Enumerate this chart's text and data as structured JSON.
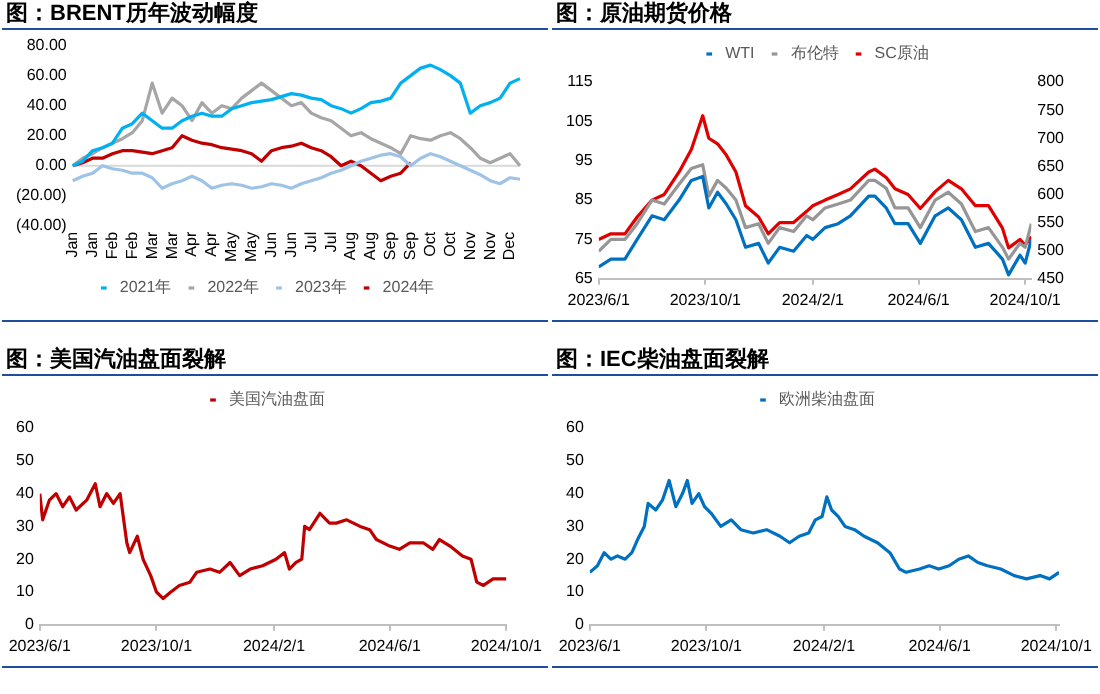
{
  "chart_data": [
    {
      "type": "line",
      "title": "图：BRENT历年波动幅度",
      "legend": "bottom",
      "marker": "none",
      "grid": false,
      "categories": [
        "Jan",
        null,
        "Jan",
        null,
        "Feb",
        null,
        "Feb",
        null,
        "Mar",
        null,
        "Mar",
        null,
        "Apr",
        null,
        "Apr",
        null,
        "May",
        null,
        "May",
        null,
        "Jun",
        null,
        "Jun",
        null,
        "Jul",
        null,
        "Jul",
        null,
        "Aug",
        null,
        "Aug",
        null,
        "Sep",
        null,
        "Sep",
        null,
        "Oct",
        null,
        "Oct",
        null,
        "Nov",
        null,
        "Nov",
        null,
        "Dec",
        null
      ],
      "ylim": [
        -40,
        80
      ],
      "yticks": [
        {
          "value": -40,
          "label": "(40.00)"
        },
        {
          "value": -20,
          "label": "(20.00)"
        },
        {
          "value": 0,
          "label": "0.00"
        },
        {
          "value": 20,
          "label": "20.00"
        },
        {
          "value": 40,
          "label": "40.00"
        },
        {
          "value": 60,
          "label": "60.00"
        },
        {
          "value": 80,
          "label": "80.00"
        }
      ],
      "ref_lines": [
        {
          "axis": "y",
          "value": 0,
          "color": "#d9d9d9"
        }
      ],
      "series": [
        {
          "name": "2021年",
          "color": "#00b0f0",
          "values": [
            0,
            3,
            10,
            12,
            15,
            25,
            28,
            35,
            30,
            25,
            25,
            30,
            33,
            35,
            33,
            33,
            38,
            40,
            42,
            43,
            44,
            46,
            48,
            47,
            45,
            44,
            40,
            38,
            35,
            38,
            42,
            43,
            45,
            55,
            60,
            65,
            67,
            64,
            60,
            55,
            35,
            40,
            42,
            45,
            55,
            58
          ]
        },
        {
          "name": "2022年",
          "color": "#a6a6a6",
          "values": [
            0,
            5,
            8,
            12,
            15,
            18,
            22,
            30,
            55,
            35,
            45,
            40,
            30,
            42,
            35,
            40,
            38,
            45,
            50,
            55,
            50,
            45,
            40,
            42,
            35,
            32,
            30,
            25,
            20,
            22,
            18,
            15,
            12,
            8,
            20,
            18,
            17,
            20,
            22,
            18,
            12,
            5,
            2,
            5,
            8,
            0
          ]
        },
        {
          "name": "2023年",
          "color": "#9dc3e6",
          "values": [
            -10,
            -7,
            -5,
            0,
            -2,
            -3,
            -5,
            -5,
            -8,
            -15,
            -12,
            -10,
            -7,
            -10,
            -15,
            -13,
            -12,
            -13,
            -15,
            -14,
            -12,
            -13,
            -15,
            -12,
            -10,
            -8,
            -5,
            -3,
            0,
            3,
            5,
            7,
            8,
            6,
            0,
            5,
            8,
            6,
            3,
            0,
            -3,
            -6,
            -10,
            -12,
            -8,
            -9
          ]
        },
        {
          "name": "2024年",
          "color": "#c00000",
          "values": [
            0,
            2,
            5,
            5,
            8,
            10,
            10,
            9,
            8,
            10,
            12,
            20,
            17,
            15,
            14,
            12,
            11,
            10,
            8,
            3,
            10,
            12,
            13,
            15,
            12,
            10,
            6,
            0,
            3,
            0,
            -5,
            -10,
            -7,
            -5,
            2,
            null,
            null,
            null,
            null,
            null,
            null,
            null,
            null,
            null,
            null,
            null
          ]
        }
      ]
    },
    {
      "type": "line",
      "title": "图：原油期货价格",
      "legend": "top",
      "marker": "none",
      "grid": false,
      "x": [
        "2023-06-01",
        "2023-06-15",
        "2023-07-01",
        "2023-07-15",
        "2023-08-01",
        "2023-08-15",
        "2023-09-01",
        "2023-09-15",
        "2023-09-28",
        "2023-10-05",
        "2023-10-15",
        "2023-10-25",
        "2023-11-05",
        "2023-11-16",
        "2023-12-01",
        "2023-12-12",
        "2023-12-25",
        "2024-01-10",
        "2024-01-25",
        "2024-02-01",
        "2024-02-15",
        "2024-03-01",
        "2024-03-15",
        "2024-04-05",
        "2024-04-12",
        "2024-04-25",
        "2024-05-05",
        "2024-05-20",
        "2024-06-03",
        "2024-06-20",
        "2024-07-05",
        "2024-07-20",
        "2024-08-05",
        "2024-08-20",
        "2024-09-05",
        "2024-09-12",
        "2024-09-25",
        "2024-10-01",
        "2024-10-08"
      ],
      "xlim": [
        "2023-06-01",
        "2024-10-08"
      ],
      "xticks": [
        {
          "value": "2023-06-01",
          "label": "2023/6/1"
        },
        {
          "value": "2023-10-01",
          "label": "2023/10/1"
        },
        {
          "value": "2024-02-01",
          "label": "2024/2/1"
        },
        {
          "value": "2024-06-01",
          "label": "2024/6/1"
        },
        {
          "value": "2024-10-01",
          "label": "2024/10/1"
        }
      ],
      "ylim": [
        65,
        115
      ],
      "yticks": [
        65,
        75,
        85,
        95,
        105,
        115
      ],
      "y2lim": [
        450,
        800
      ],
      "y2ticks": [
        450,
        500,
        550,
        600,
        650,
        700,
        750,
        800
      ],
      "series": [
        {
          "name": "WTI",
          "color": "#0070c0",
          "values": [
            68,
            70,
            70,
            75,
            81,
            80,
            85,
            90,
            91,
            83,
            87,
            84,
            80,
            73,
            74,
            69,
            73,
            72,
            76,
            75,
            78,
            79,
            81,
            86,
            86,
            83,
            79,
            79,
            74,
            81,
            83,
            80,
            73,
            74,
            70,
            66,
            71,
            69,
            75
          ]
        },
        {
          "name": "布伦特",
          "color": "#969696",
          "values": [
            72,
            75,
            75,
            79,
            85,
            84,
            89,
            93,
            94,
            86,
            90,
            88,
            85,
            78,
            79,
            74,
            78,
            77,
            81,
            80,
            83,
            84,
            85,
            90,
            90,
            88,
            83,
            83,
            78,
            85,
            87,
            84,
            77,
            78,
            73,
            70,
            74,
            73,
            79
          ]
        },
        {
          "name": "SC原油",
          "color": "#e00000",
          "axis": "y2",
          "values": [
            520,
            530,
            530,
            560,
            590,
            600,
            640,
            680,
            740,
            700,
            690,
            670,
            640,
            580,
            560,
            530,
            550,
            550,
            570,
            580,
            590,
            600,
            610,
            640,
            645,
            630,
            610,
            600,
            575,
            605,
            625,
            610,
            580,
            580,
            540,
            505,
            520,
            510,
            525
          ]
        }
      ]
    },
    {
      "type": "line",
      "title": "图：美国汽油盘面裂解",
      "legend": "top",
      "marker": "none",
      "grid": false,
      "x": [
        "2023-06-01",
        "2023-06-04",
        "2023-06-11",
        "2023-06-18",
        "2023-06-25",
        "2023-07-02",
        "2023-07-09",
        "2023-07-20",
        "2023-07-29",
        "2023-08-03",
        "2023-08-10",
        "2023-08-17",
        "2023-08-24",
        "2023-08-31",
        "2023-09-03",
        "2023-09-11",
        "2023-09-17",
        "2023-09-25",
        "2023-10-01",
        "2023-10-08",
        "2023-10-16",
        "2023-10-25",
        "2023-11-05",
        "2023-11-12",
        "2023-11-26",
        "2023-12-06",
        "2023-12-17",
        "2023-12-27",
        "2024-01-07",
        "2024-01-20",
        "2024-02-03",
        "2024-02-12",
        "2024-02-17",
        "2024-02-24",
        "2024-03-01",
        "2024-03-04",
        "2024-03-09",
        "2024-03-20",
        "2024-03-30",
        "2024-04-06",
        "2024-04-17",
        "2024-05-01",
        "2024-05-11",
        "2024-05-18",
        "2024-06-01",
        "2024-06-11",
        "2024-06-22",
        "2024-07-06",
        "2024-07-16",
        "2024-07-23",
        "2024-08-03",
        "2024-08-16",
        "2024-08-25",
        "2024-08-31",
        "2024-09-07",
        "2024-09-17",
        "2024-09-28",
        "2024-10-01"
      ],
      "xlim": [
        "2023-06-01",
        "2024-10-01"
      ],
      "xticks": [
        {
          "value": "2023-06-01",
          "label": "2023/6/1"
        },
        {
          "value": "2023-10-01",
          "label": "2023/10/1"
        },
        {
          "value": "2024-02-01",
          "label": "2024/2/1"
        },
        {
          "value": "2024-06-01",
          "label": "2024/6/1"
        },
        {
          "value": "2024-10-01",
          "label": "2024/10/1"
        }
      ],
      "ylim": [
        0,
        60
      ],
      "yticks": [
        0,
        10,
        20,
        30,
        40,
        50,
        60
      ],
      "series": [
        {
          "name": "美国汽油盘面",
          "color": "#c00000",
          "values": [
            40,
            32,
            38,
            40,
            36,
            39,
            35,
            38,
            43,
            36,
            40,
            37,
            40,
            25,
            22,
            27,
            20,
            15,
            10,
            8,
            10,
            12,
            13,
            16,
            17,
            16,
            19,
            15,
            17,
            18,
            20,
            22,
            17,
            19,
            20,
            30,
            29,
            34,
            31,
            31,
            32,
            30,
            29,
            26,
            24,
            23,
            25,
            25,
            23,
            26,
            24,
            21,
            20,
            13,
            12,
            14,
            14,
            14
          ]
        }
      ]
    },
    {
      "type": "line",
      "title": "图：IEC柴油盘面裂解",
      "legend": "top",
      "marker": "none",
      "grid": false,
      "x": [
        "2023-06-01",
        "2023-06-09",
        "2023-06-16",
        "2023-06-23",
        "2023-06-30",
        "2023-07-08",
        "2023-07-15",
        "2023-07-21",
        "2023-07-28",
        "2023-08-01",
        "2023-08-09",
        "2023-08-16",
        "2023-08-23",
        "2023-08-30",
        "2023-09-06",
        "2023-09-11",
        "2023-09-16",
        "2023-09-23",
        "2023-09-29",
        "2023-10-06",
        "2023-10-16",
        "2023-10-27",
        "2023-11-06",
        "2023-11-19",
        "2023-12-03",
        "2023-12-17",
        "2023-12-27",
        "2024-01-06",
        "2024-01-16",
        "2024-01-23",
        "2024-01-30",
        "2024-02-04",
        "2024-02-09",
        "2024-02-16",
        "2024-02-23",
        "2024-03-04",
        "2024-03-14",
        "2024-03-28",
        "2024-04-10",
        "2024-04-20",
        "2024-04-27",
        "2024-05-11",
        "2024-05-21",
        "2024-05-31",
        "2024-06-11",
        "2024-06-21",
        "2024-07-01",
        "2024-07-11",
        "2024-07-21",
        "2024-08-04",
        "2024-08-18",
        "2024-08-31",
        "2024-09-14",
        "2024-09-24",
        "2024-10-04"
      ],
      "xlim": [
        "2023-06-01",
        "2024-10-04"
      ],
      "xticks": [
        {
          "value": "2023-06-01",
          "label": "2023/6/1"
        },
        {
          "value": "2023-10-01",
          "label": "2023/10/1"
        },
        {
          "value": "2024-02-01",
          "label": "2024/2/1"
        },
        {
          "value": "2024-06-01",
          "label": "2024/6/1"
        },
        {
          "value": "2024-10-01",
          "label": "2024/10/1"
        }
      ],
      "ylim": [
        0,
        60
      ],
      "yticks": [
        0,
        10,
        20,
        30,
        40,
        50,
        60
      ],
      "series": [
        {
          "name": "欧洲柴油盘面",
          "color": "#0070c0",
          "values": [
            16,
            18,
            22,
            20,
            21,
            20,
            22,
            26,
            30,
            37,
            35,
            38,
            44,
            36,
            40,
            44,
            37,
            40,
            36,
            34,
            30,
            32,
            29,
            28,
            29,
            27,
            25,
            27,
            28,
            32,
            33,
            39,
            35,
            33,
            30,
            29,
            27,
            25,
            22,
            17,
            16,
            17,
            18,
            17,
            18,
            20,
            21,
            19,
            18,
            17,
            15,
            14,
            15,
            14,
            16
          ]
        }
      ]
    }
  ]
}
